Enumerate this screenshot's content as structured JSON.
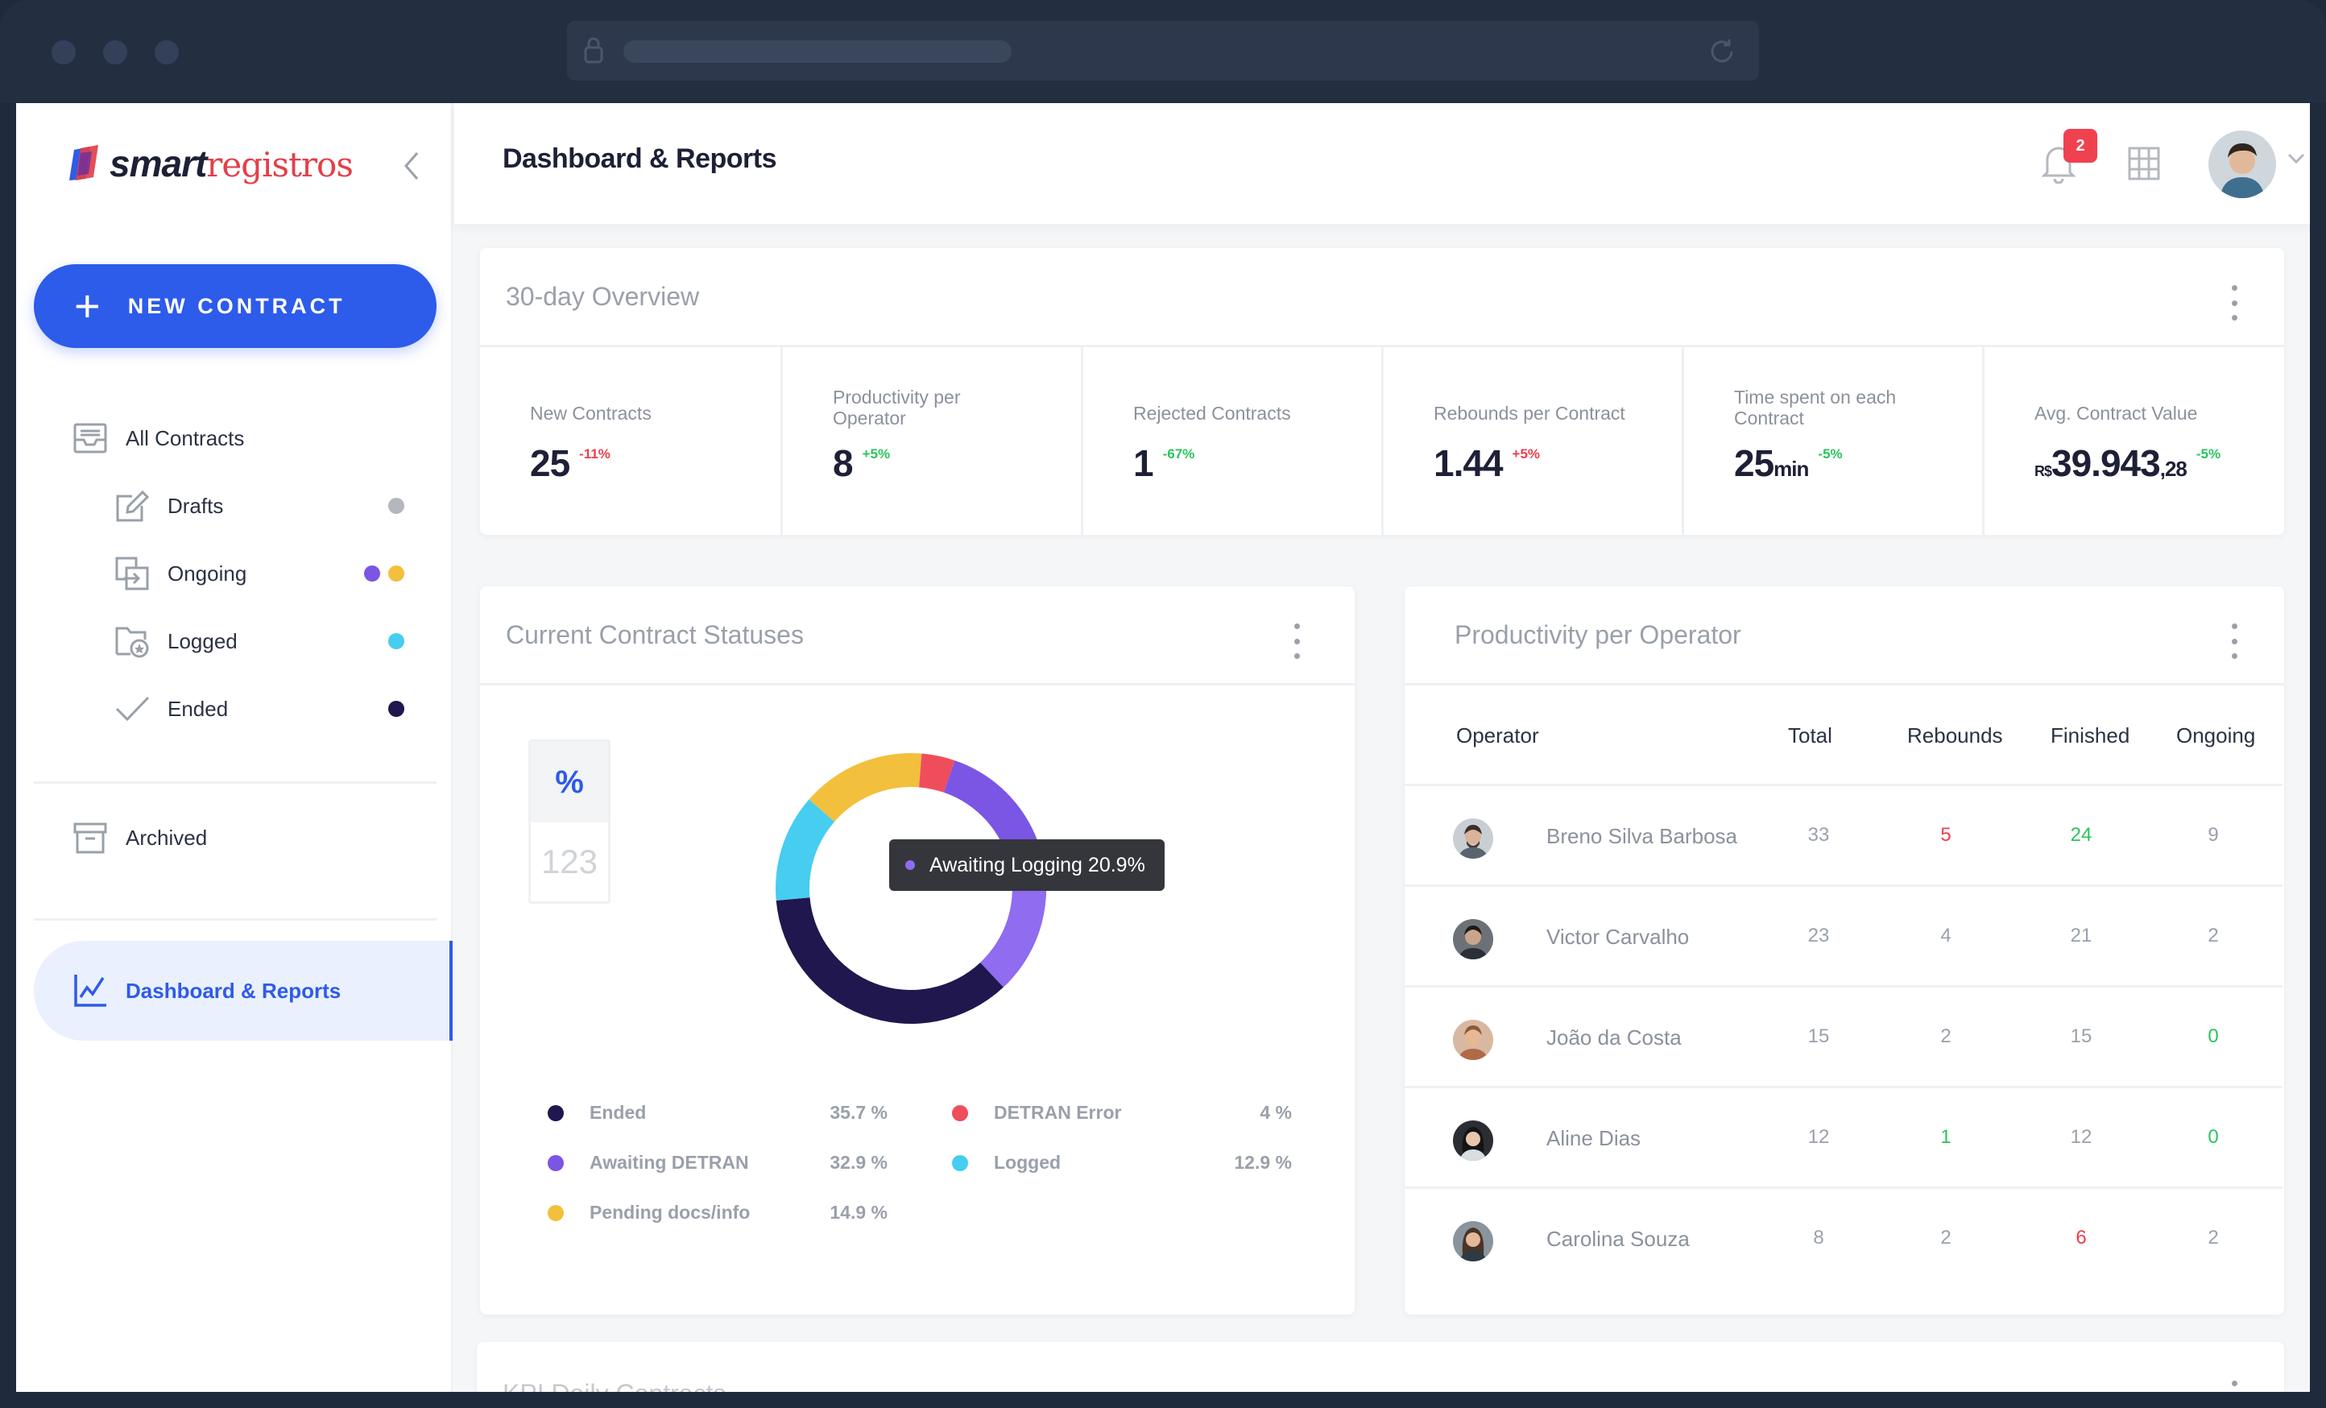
{
  "app": {
    "name_part1": "smart",
    "name_part2": "registros"
  },
  "sidebar": {
    "new_contract_label": "NEW CONTRACT",
    "items": [
      {
        "label": "All Contracts",
        "icon": "inbox-icon"
      },
      {
        "label": "Drafts",
        "icon": "edit-icon"
      },
      {
        "label": "Ongoing",
        "icon": "transfer-icon"
      },
      {
        "label": "Logged",
        "icon": "folder-star-icon"
      },
      {
        "label": "Ended",
        "icon": "check-icon"
      },
      {
        "label": "Archived",
        "icon": "archive-icon"
      },
      {
        "label": "Dashboard & Reports",
        "icon": "chart-icon"
      }
    ]
  },
  "header": {
    "title": "Dashboard & Reports",
    "notification_count": "2"
  },
  "overview": {
    "title": "30-day Overview",
    "kpis": [
      {
        "label": "New Contracts",
        "value": "25",
        "delta": "-11%"
      },
      {
        "label": "Productivity per Operator",
        "value": "8",
        "delta": "+5%"
      },
      {
        "label": "Rejected Contracts",
        "value": "1",
        "delta": "-67%"
      },
      {
        "label": "Rebounds per Contract",
        "value": "1.44",
        "delta": "+5%"
      },
      {
        "label": "Time spent on each Contract",
        "value": "25",
        "unit": "min",
        "delta": "-5%"
      },
      {
        "label": "Avg. Contract Value",
        "currency": "R$",
        "value": "39.943",
        "cents": ",28",
        "delta": "-5%"
      }
    ]
  },
  "statuses": {
    "title": "Current Contract Statuses",
    "toggle_percent": "%",
    "toggle_count": "123",
    "tooltip": "Awaiting Logging 20.9%",
    "legend": [
      {
        "label": "Ended",
        "pct": "35.7 %"
      },
      {
        "label": "Awaiting DETRAN",
        "pct": "32.9 %"
      },
      {
        "label": "Pending docs/info",
        "pct": "14.9 %"
      },
      {
        "label": "DETRAN Error",
        "pct": "4 %"
      },
      {
        "label": "Logged",
        "pct": "12.9 %"
      }
    ]
  },
  "productivity": {
    "title": "Productivity per Operator",
    "columns": [
      "Operator",
      "Total",
      "Rebounds",
      "Finished",
      "Ongoing"
    ],
    "rows": [
      {
        "name": "Breno Silva Barbosa",
        "total": "33",
        "rebounds": "5",
        "finished": "24",
        "ongoing": "9"
      },
      {
        "name": "Victor Carvalho",
        "total": "23",
        "rebounds": "4",
        "finished": "21",
        "ongoing": "2"
      },
      {
        "name": "João da Costa",
        "total": "15",
        "rebounds": "2",
        "finished": "15",
        "ongoing": "0"
      },
      {
        "name": "Aline Dias",
        "total": "12",
        "rebounds": "1",
        "finished": "12",
        "ongoing": "0"
      },
      {
        "name": "Carolina Souza",
        "total": "8",
        "rebounds": "2",
        "finished": "6",
        "ongoing": "2"
      }
    ]
  },
  "kpi_daily": {
    "title": "KPI Daily Contracts"
  },
  "chart_data": {
    "type": "pie",
    "categories": [
      "Ended",
      "Awaiting DETRAN",
      "Pending docs/info",
      "DETRAN Error",
      "Logged"
    ],
    "values": [
      35.7,
      32.9,
      14.9,
      4,
      12.9
    ],
    "colors": [
      "#20174f",
      "#7b55e4",
      "#f2c03c",
      "#f04d5c",
      "#46cdf0"
    ],
    "highlight": {
      "label": "Awaiting Logging",
      "value": 20.9
    }
  }
}
